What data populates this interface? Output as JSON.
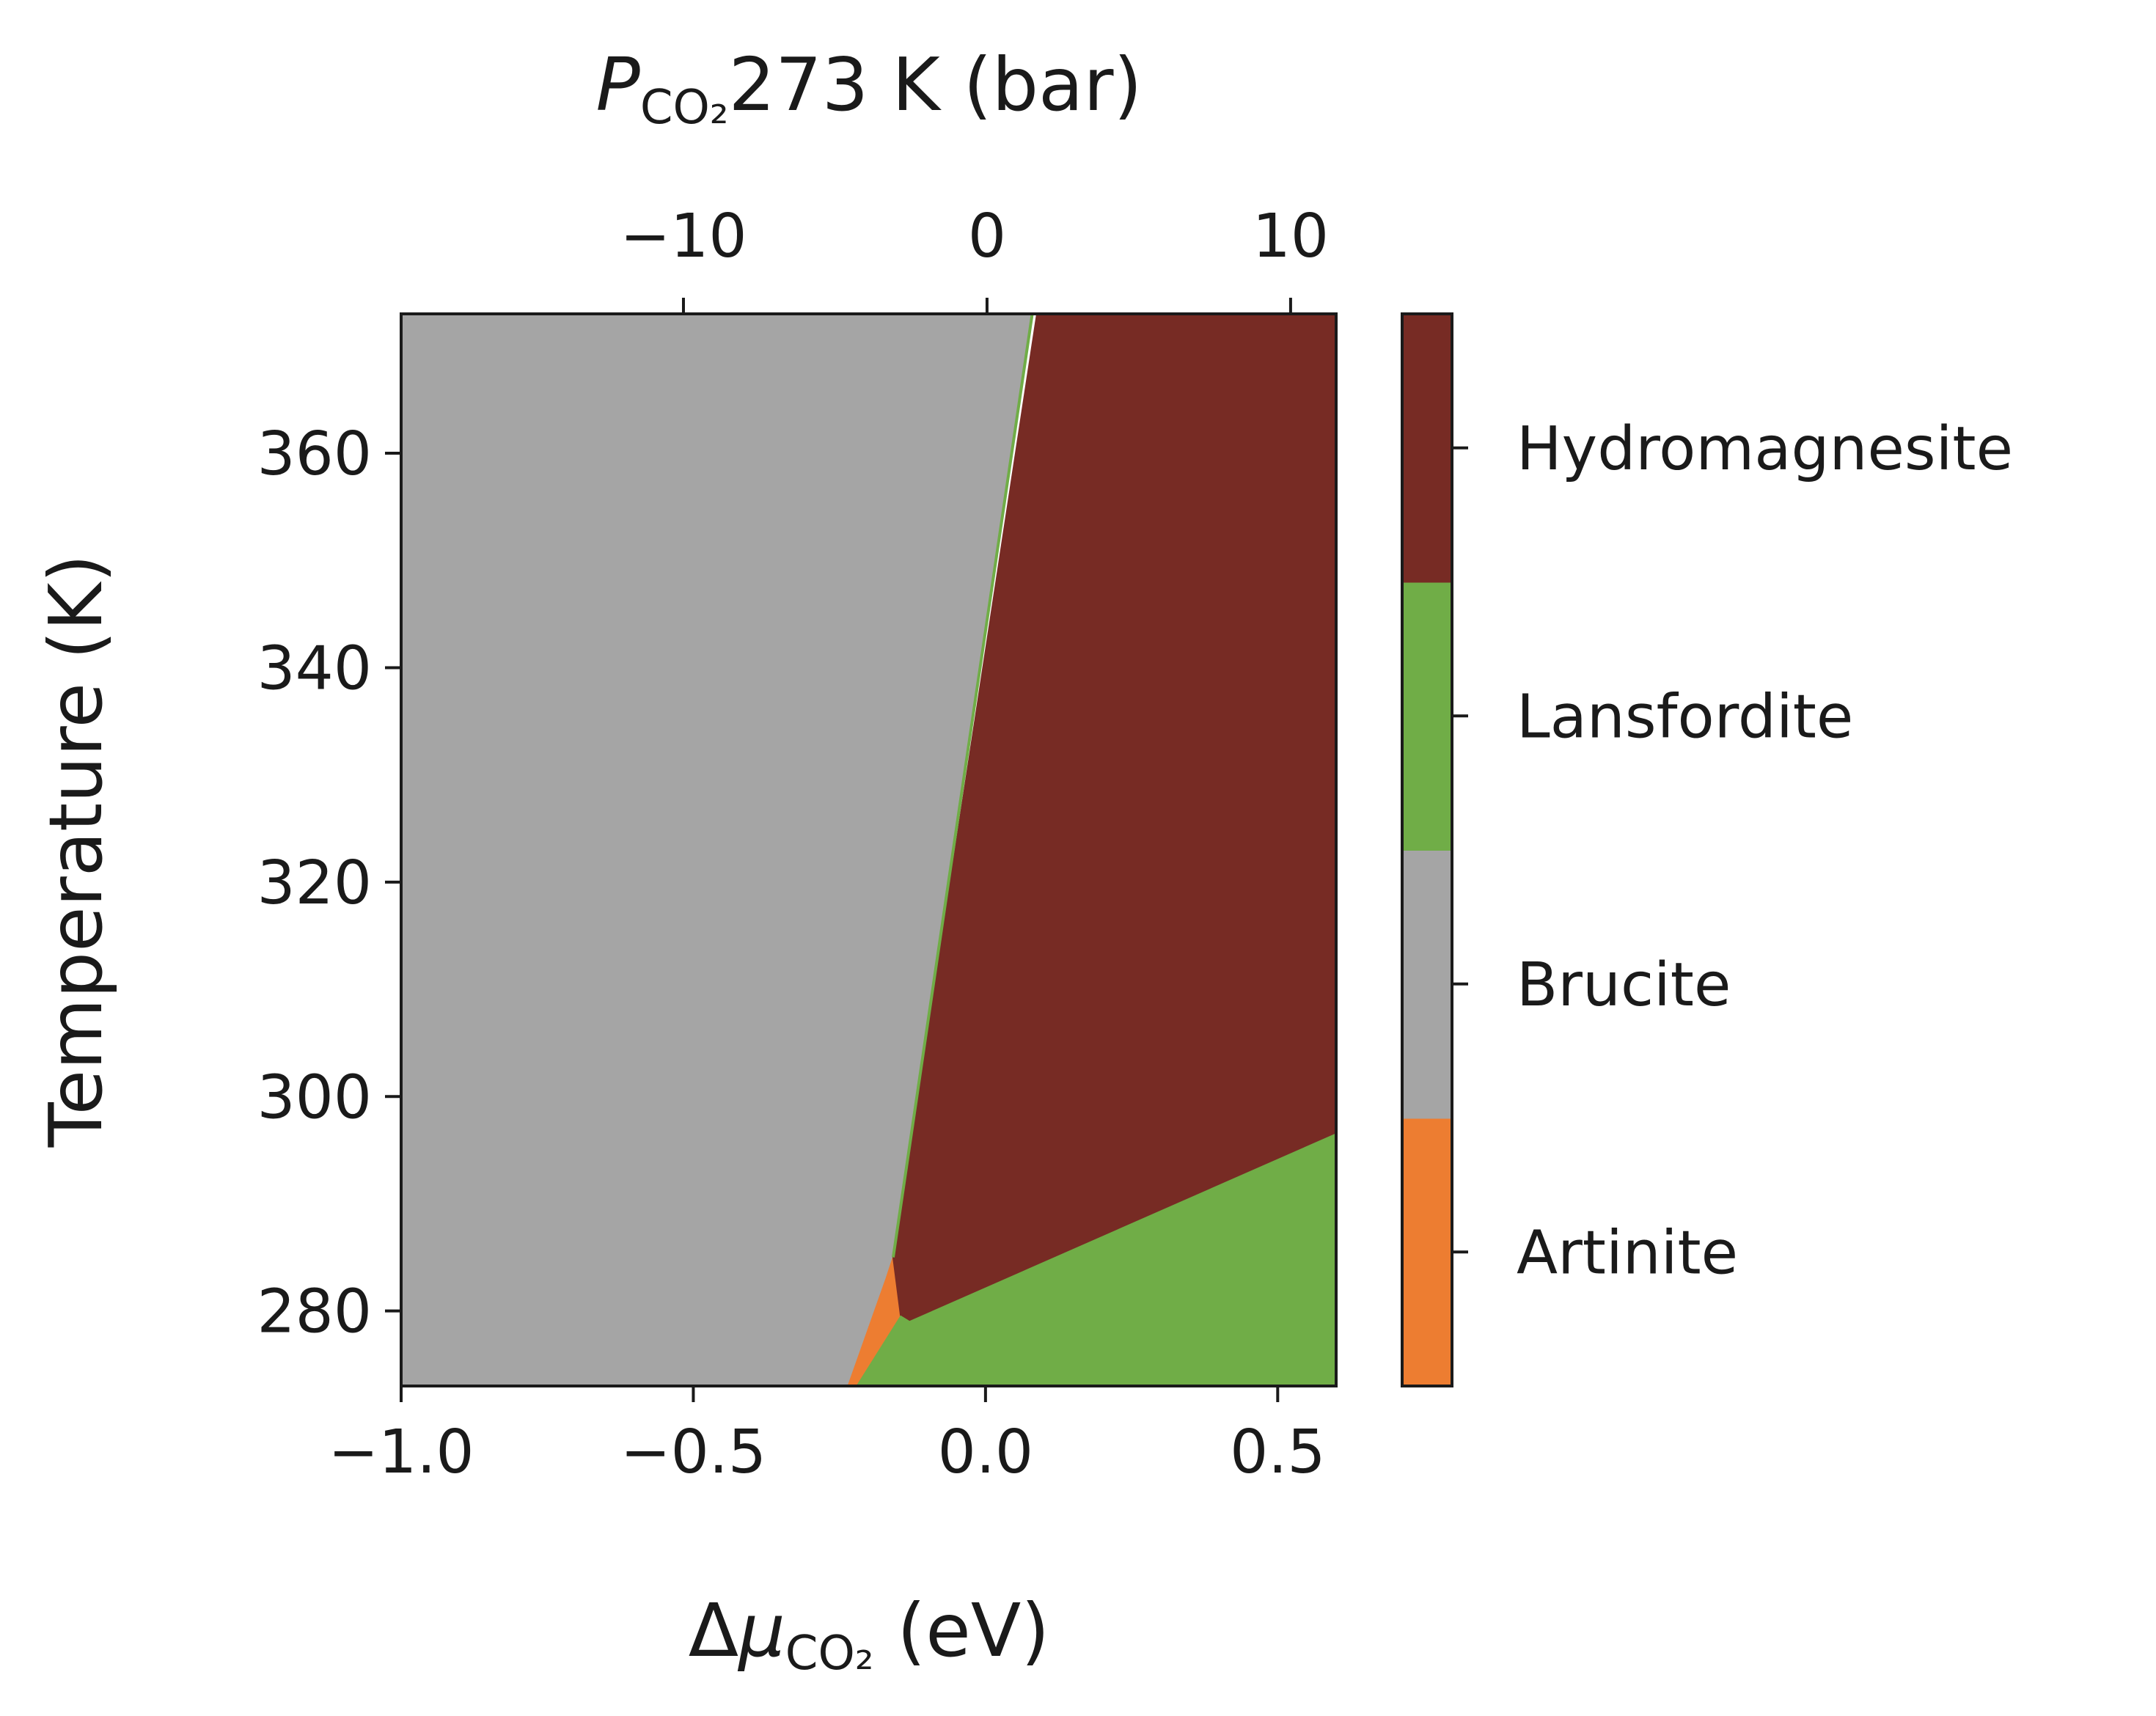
{
  "chart_data": {
    "type": "heatmap",
    "xlabel": {
      "prefix": "Δ",
      "symbol": "μ",
      "sub": "CO₂",
      "suffix": " (eV)"
    },
    "top_xlabel": {
      "symbol": "P",
      "sub": "CO₂",
      "suffix": "273 K (bar)"
    },
    "ylabel": "Temperature (K)",
    "xlim": [
      -1.0,
      0.6
    ],
    "ylim": [
      273,
      373
    ],
    "top_xlim": [
      -19.3,
      11.5
    ],
    "x_ticks": [
      {
        "value": -1.0,
        "label": "−1.0"
      },
      {
        "value": -0.5,
        "label": "−0.5"
      },
      {
        "value": 0.0,
        "label": "0.0"
      },
      {
        "value": 0.5,
        "label": "0.5"
      }
    ],
    "top_x_ticks": [
      {
        "value": -10,
        "label": "−10"
      },
      {
        "value": 0,
        "label": "0"
      },
      {
        "value": 10,
        "label": "10"
      }
    ],
    "y_ticks": [
      {
        "value": 280,
        "label": "280"
      },
      {
        "value": 300,
        "label": "300"
      },
      {
        "value": 320,
        "label": "320"
      },
      {
        "value": 340,
        "label": "340"
      },
      {
        "value": 360,
        "label": "360"
      }
    ],
    "regions": [
      {
        "name": "Brucite",
        "color": "#a5a5a5",
        "polygon": [
          [
            -1.0,
            273
          ],
          [
            -0.235,
            273
          ],
          [
            -0.17,
            283
          ],
          [
            -0.158,
            285
          ],
          [
            0.08,
            373
          ],
          [
            -1.0,
            373
          ]
        ]
      },
      {
        "name": "Artinite",
        "color": "#ed7d31",
        "polygon": [
          [
            -0.235,
            273
          ],
          [
            -0.22,
            273
          ],
          [
            -0.145,
            279.5
          ],
          [
            -0.158,
            285
          ],
          [
            -0.17,
            283
          ]
        ]
      },
      {
        "name": "Hydromagnesite",
        "color": "#772b24",
        "polygon": [
          [
            -0.158,
            285
          ],
          [
            -0.145,
            279.5
          ],
          [
            -0.13,
            279
          ],
          [
            0.6,
            296.5
          ],
          [
            0.6,
            373
          ],
          [
            0.088,
            373
          ]
        ]
      },
      {
        "name": "Lansfordite",
        "color": "#70ad47",
        "polygon": [
          [
            -0.22,
            273
          ],
          [
            0.6,
            273
          ],
          [
            0.6,
            296.5
          ],
          [
            -0.13,
            279
          ],
          [
            -0.145,
            279.5
          ]
        ]
      }
    ],
    "colorbar": [
      {
        "label": "Artinite",
        "color": "#ed7d31"
      },
      {
        "label": "Brucite",
        "color": "#a5a5a5"
      },
      {
        "label": "Lansfordite",
        "color": "#70ad47"
      },
      {
        "label": "Hydromagnesite",
        "color": "#772b24"
      }
    ],
    "grid": false
  }
}
